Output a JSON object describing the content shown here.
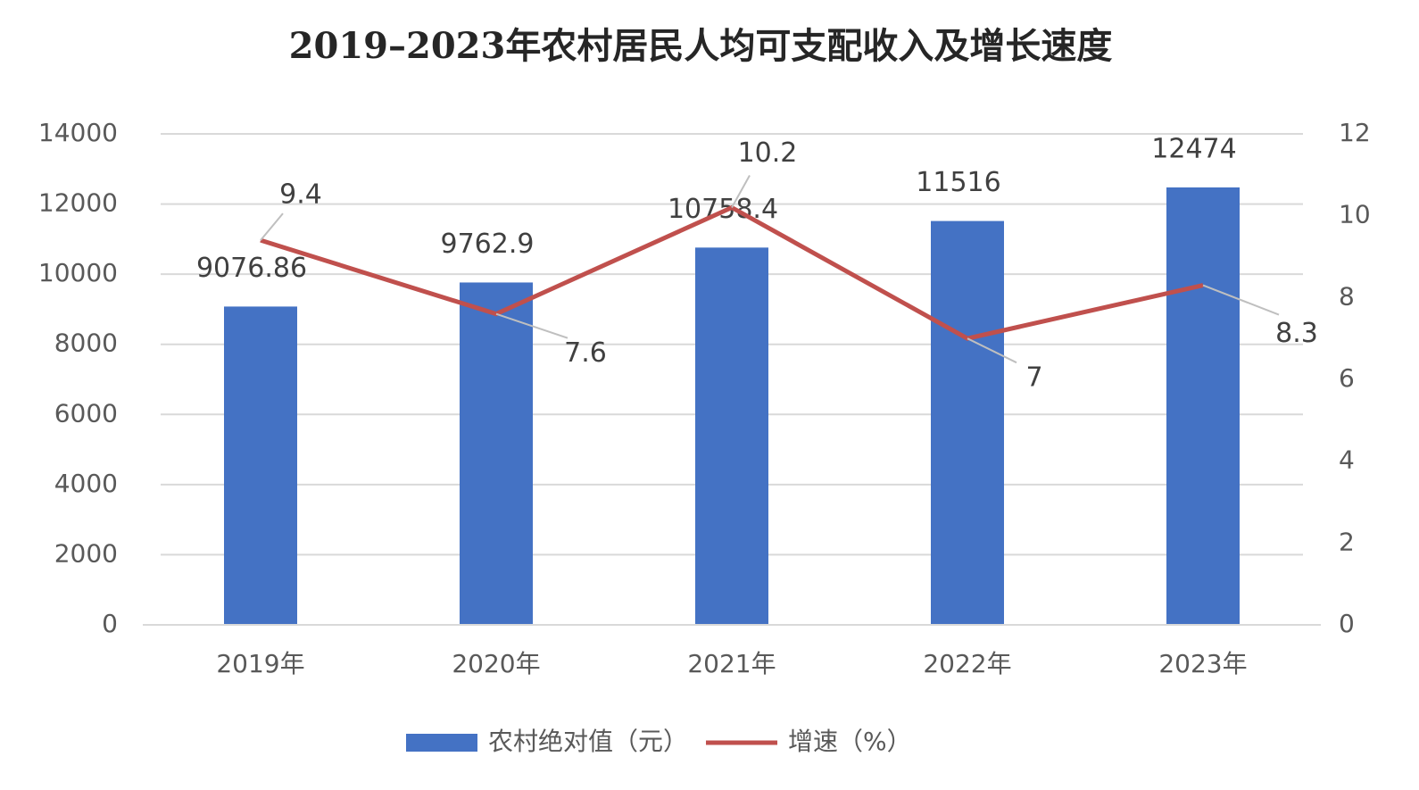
{
  "chart_data": {
    "type": "bar",
    "title": "2019–2023年农村居民人均可支配收入及增长速度",
    "categories": [
      "2019年",
      "2020年",
      "2021年",
      "2022年",
      "2023年"
    ],
    "series": [
      {
        "name": "农村绝对值（元）",
        "type": "bar",
        "color": "#4472c4",
        "values": [
          9076.86,
          9762.9,
          10758.4,
          11516,
          12474
        ]
      },
      {
        "name": "增速（%）",
        "type": "line",
        "axis": "y2",
        "color": "#c0504d",
        "values": [
          9.4,
          7.6,
          10.2,
          7,
          8.3
        ]
      }
    ],
    "ylim": [
      0,
      14000
    ],
    "yticks": [
      0,
      2000,
      4000,
      6000,
      8000,
      10000,
      12000,
      14000
    ],
    "y2lim": [
      0,
      12
    ],
    "y2ticks": [
      0,
      2,
      4,
      6,
      8,
      10,
      12
    ],
    "grid": true,
    "legend": "bottom"
  }
}
